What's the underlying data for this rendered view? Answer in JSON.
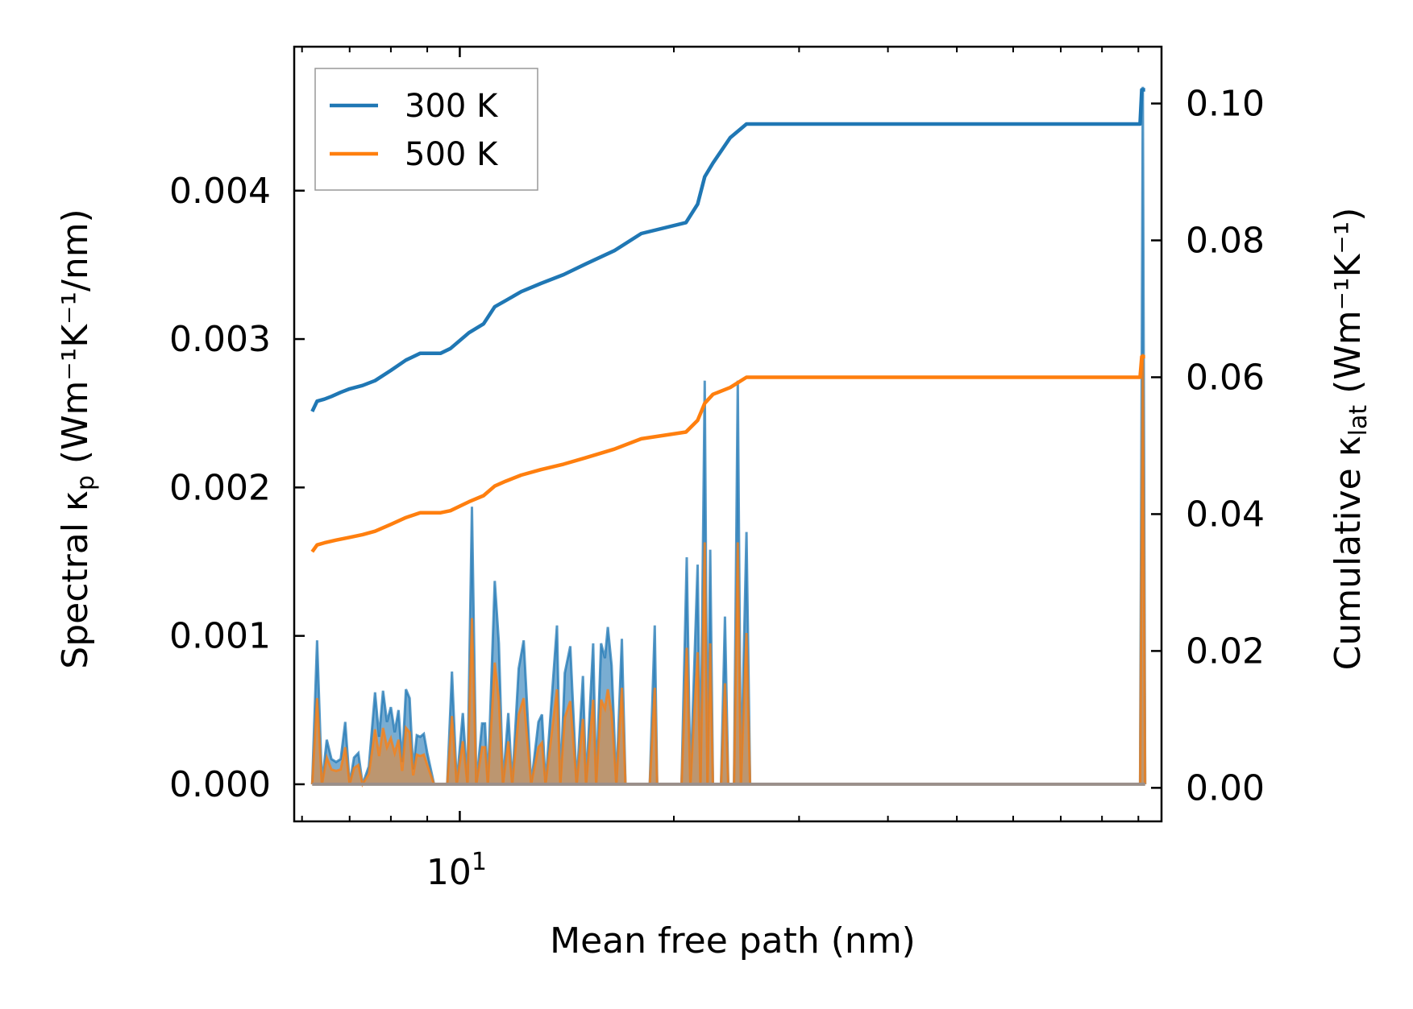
{
  "chart_data": {
    "type": "line",
    "xscale": "log",
    "xlabel": "Mean free path (nm)",
    "ylabel_left": {
      "prefix": "Spectral κ",
      "sub": "p",
      "units": " (Wm⁻¹K⁻¹/nm)"
    },
    "ylabel_right": {
      "prefix": "Cumulative κ",
      "sub": "lat",
      "units": " (Wm⁻¹K⁻¹)"
    },
    "xlim": [
      5.85,
      97
    ],
    "ylim_left": [
      -0.00025,
      0.00497
    ],
    "ylim_right": [
      -0.0049,
      0.1083
    ],
    "xticks_major": [
      {
        "value": 10,
        "base": "10",
        "exp": "1"
      }
    ],
    "xticks_minor": [
      6,
      7,
      8,
      9,
      20,
      30,
      40,
      50,
      60,
      70,
      80,
      90
    ],
    "yticks_left": [
      {
        "value": 0.0,
        "label": "0.000"
      },
      {
        "value": 0.001,
        "label": "0.001"
      },
      {
        "value": 0.002,
        "label": "0.002"
      },
      {
        "value": 0.003,
        "label": "0.003"
      },
      {
        "value": 0.004,
        "label": "0.004"
      }
    ],
    "yticks_right": [
      {
        "value": 0.0,
        "label": "0.00"
      },
      {
        "value": 0.02,
        "label": "0.02"
      },
      {
        "value": 0.04,
        "label": "0.04"
      },
      {
        "value": 0.06,
        "label": "0.06"
      },
      {
        "value": 0.08,
        "label": "0.08"
      },
      {
        "value": 0.1,
        "label": "0.10"
      }
    ],
    "legend": {
      "position": "top-left",
      "entries": [
        {
          "label": "300 K",
          "color": "#1f77b4"
        },
        {
          "label": "500 K",
          "color": "#ff7f0e"
        }
      ]
    },
    "series": [
      {
        "name": "300 K",
        "color": "#1f77b4",
        "spectral": [
          [
            6.2,
            0
          ],
          [
            6.3,
            0.00097
          ],
          [
            6.4,
            0
          ],
          [
            6.5,
            0.0003
          ],
          [
            6.6,
            0.00017
          ],
          [
            6.7,
            0.00015
          ],
          [
            6.8,
            0.00017
          ],
          [
            6.9,
            0.00042
          ],
          [
            7.0,
            0
          ],
          [
            7.1,
            0.00018
          ],
          [
            7.2,
            0.00021
          ],
          [
            7.3,
            0
          ],
          [
            7.45,
            0.00012
          ],
          [
            7.6,
            0.00062
          ],
          [
            7.7,
            0.00032
          ],
          [
            7.8,
            0.00063
          ],
          [
            7.9,
            0.00042
          ],
          [
            8.0,
            0.00052
          ],
          [
            8.1,
            0.00035
          ],
          [
            8.2,
            0.0005
          ],
          [
            8.3,
            0.00015
          ],
          [
            8.4,
            0.00064
          ],
          [
            8.5,
            0.00058
          ],
          [
            8.6,
            0.0001
          ],
          [
            8.7,
            0.00033
          ],
          [
            8.8,
            0.00032
          ],
          [
            8.9,
            0.00034
          ],
          [
            9.0,
            0.00021
          ],
          [
            9.2,
            0
          ],
          [
            9.6,
            0
          ],
          [
            9.75,
            0.00076
          ],
          [
            9.9,
            0
          ],
          [
            10.1,
            0.00048
          ],
          [
            10.25,
            0
          ],
          [
            10.4,
            0.00187
          ],
          [
            10.55,
            0
          ],
          [
            10.75,
            0.00041
          ],
          [
            10.85,
            0.00041
          ],
          [
            10.95,
            0
          ],
          [
            11.2,
            0.00137
          ],
          [
            11.35,
            0.00095
          ],
          [
            11.5,
            0
          ],
          [
            11.7,
            0.00048
          ],
          [
            11.85,
            0
          ],
          [
            12.1,
            0.00078
          ],
          [
            12.3,
            0.00097
          ],
          [
            12.6,
            0
          ],
          [
            12.9,
            0.00042
          ],
          [
            13.05,
            0.00047
          ],
          [
            13.2,
            0
          ],
          [
            13.7,
            0.00107
          ],
          [
            13.85,
            0
          ],
          [
            14.05,
            0.00075
          ],
          [
            14.3,
            0.00093
          ],
          [
            14.6,
            0
          ],
          [
            14.9,
            0.00073
          ],
          [
            15.05,
            0
          ],
          [
            15.4,
            0.00095
          ],
          [
            15.55,
            0
          ],
          [
            15.8,
            0.00095
          ],
          [
            16.0,
            0.00085
          ],
          [
            16.15,
            0.00106
          ],
          [
            16.35,
            0.0008
          ],
          [
            16.6,
            0
          ],
          [
            16.9,
            0.00098
          ],
          [
            17.1,
            0
          ],
          [
            18.5,
            0
          ],
          [
            18.8,
            0.00107
          ],
          [
            18.95,
            0
          ],
          [
            20.5,
            0
          ],
          [
            20.85,
            0.00153
          ],
          [
            21.1,
            0
          ],
          [
            21.6,
            0.00148
          ],
          [
            21.8,
            0
          ],
          [
            22.1,
            0.00272
          ],
          [
            22.3,
            0
          ],
          [
            22.5,
            0.00158
          ],
          [
            22.7,
            0
          ],
          [
            23.3,
            0
          ],
          [
            23.6,
            0.00113
          ],
          [
            23.85,
            0
          ],
          [
            24.3,
            0
          ],
          [
            24.6,
            0.00272
          ],
          [
            24.85,
            0
          ],
          [
            25.3,
            0.0017
          ],
          [
            25.6,
            0
          ],
          [
            90.5,
            0
          ],
          [
            91.3,
            0.0047
          ],
          [
            92.0,
            0
          ]
        ],
        "cumulative": [
          [
            6.2,
            0.055
          ],
          [
            6.3,
            0.0565
          ],
          [
            6.45,
            0.0568
          ],
          [
            6.6,
            0.0572
          ],
          [
            6.8,
            0.0578
          ],
          [
            7.0,
            0.0583
          ],
          [
            7.3,
            0.0588
          ],
          [
            7.6,
            0.0595
          ],
          [
            8.0,
            0.061
          ],
          [
            8.4,
            0.0625
          ],
          [
            8.8,
            0.0635
          ],
          [
            9.4,
            0.0635
          ],
          [
            9.7,
            0.0642
          ],
          [
            10.3,
            0.0665
          ],
          [
            10.8,
            0.0678
          ],
          [
            11.2,
            0.0703
          ],
          [
            11.6,
            0.0712
          ],
          [
            12.2,
            0.0725
          ],
          [
            13.0,
            0.0737
          ],
          [
            14.0,
            0.075
          ],
          [
            15.0,
            0.0765
          ],
          [
            16.5,
            0.0785
          ],
          [
            18.0,
            0.081
          ],
          [
            20.8,
            0.0826
          ],
          [
            21.6,
            0.0853
          ],
          [
            22.1,
            0.0893
          ],
          [
            22.7,
            0.0913
          ],
          [
            24.0,
            0.095
          ],
          [
            25.3,
            0.097
          ],
          [
            90.5,
            0.097
          ],
          [
            91.0,
            0.102
          ],
          [
            92.0,
            0.102
          ]
        ]
      },
      {
        "name": "500 K",
        "color": "#ff7f0e",
        "spectral": [
          [
            6.2,
            0
          ],
          [
            6.3,
            0.00058
          ],
          [
            6.4,
            0
          ],
          [
            6.5,
            0.00018
          ],
          [
            6.6,
            0.0001
          ],
          [
            6.7,
            9e-05
          ],
          [
            6.8,
            0.0001
          ],
          [
            6.9,
            0.00025
          ],
          [
            7.0,
            0
          ],
          [
            7.1,
            0.00011
          ],
          [
            7.2,
            0.00013
          ],
          [
            7.3,
            0
          ],
          [
            7.45,
            7e-05
          ],
          [
            7.6,
            0.00037
          ],
          [
            7.7,
            0.00019
          ],
          [
            7.8,
            0.00038
          ],
          [
            7.9,
            0.00025
          ],
          [
            8.0,
            0.00031
          ],
          [
            8.1,
            0.00021
          ],
          [
            8.2,
            0.0003
          ],
          [
            8.3,
            9e-05
          ],
          [
            8.4,
            0.00038
          ],
          [
            8.5,
            0.00035
          ],
          [
            8.6,
            6e-05
          ],
          [
            8.7,
            0.0002
          ],
          [
            8.8,
            0.00019
          ],
          [
            8.9,
            0.0002
          ],
          [
            9.0,
            0.00013
          ],
          [
            9.2,
            0
          ],
          [
            9.6,
            0
          ],
          [
            9.75,
            0.00046
          ],
          [
            9.9,
            0
          ],
          [
            10.1,
            0.00029
          ],
          [
            10.25,
            0
          ],
          [
            10.4,
            0.00112
          ],
          [
            10.55,
            0
          ],
          [
            10.75,
            0.00025
          ],
          [
            10.85,
            0.00025
          ],
          [
            10.95,
            0
          ],
          [
            11.2,
            0.00082
          ],
          [
            11.35,
            0.00057
          ],
          [
            11.5,
            0
          ],
          [
            11.7,
            0.00029
          ],
          [
            11.85,
            0
          ],
          [
            12.1,
            0.00047
          ],
          [
            12.3,
            0.00058
          ],
          [
            12.6,
            0
          ],
          [
            12.9,
            0.00025
          ],
          [
            13.05,
            0.00028
          ],
          [
            13.2,
            0
          ],
          [
            13.7,
            0.00064
          ],
          [
            13.85,
            0
          ],
          [
            14.05,
            0.00045
          ],
          [
            14.3,
            0.00056
          ],
          [
            14.6,
            0
          ],
          [
            14.9,
            0.00044
          ],
          [
            15.05,
            0
          ],
          [
            15.4,
            0.00057
          ],
          [
            15.55,
            0
          ],
          [
            15.8,
            0.00057
          ],
          [
            16.0,
            0.00051
          ],
          [
            16.15,
            0.00064
          ],
          [
            16.35,
            0.00048
          ],
          [
            16.6,
            0
          ],
          [
            16.9,
            0.00065
          ],
          [
            17.1,
            0
          ],
          [
            18.5,
            0
          ],
          [
            18.8,
            0.00065
          ],
          [
            18.95,
            0
          ],
          [
            20.5,
            0
          ],
          [
            20.85,
            0.00092
          ],
          [
            21.1,
            0
          ],
          [
            21.6,
            0.00089
          ],
          [
            21.8,
            0
          ],
          [
            22.1,
            0.00163
          ],
          [
            22.3,
            0
          ],
          [
            22.5,
            0.00095
          ],
          [
            22.7,
            0
          ],
          [
            23.3,
            0
          ],
          [
            23.6,
            0.00068
          ],
          [
            23.85,
            0
          ],
          [
            24.3,
            0
          ],
          [
            24.6,
            0.00163
          ],
          [
            24.85,
            0
          ],
          [
            25.3,
            0.00102
          ],
          [
            25.6,
            0
          ],
          [
            90.5,
            0
          ],
          [
            91.3,
            0.0029
          ],
          [
            92.0,
            0
          ]
        ],
        "cumulative": [
          [
            6.2,
            0.0345
          ],
          [
            6.3,
            0.0355
          ],
          [
            6.45,
            0.0358
          ],
          [
            6.7,
            0.0362
          ],
          [
            7.0,
            0.0366
          ],
          [
            7.3,
            0.037
          ],
          [
            7.6,
            0.0375
          ],
          [
            8.0,
            0.0385
          ],
          [
            8.4,
            0.0395
          ],
          [
            8.8,
            0.0402
          ],
          [
            9.4,
            0.0402
          ],
          [
            9.7,
            0.0405
          ],
          [
            10.3,
            0.0418
          ],
          [
            10.8,
            0.0427
          ],
          [
            11.2,
            0.0441
          ],
          [
            11.6,
            0.0448
          ],
          [
            12.2,
            0.0457
          ],
          [
            13.0,
            0.0465
          ],
          [
            14.0,
            0.0473
          ],
          [
            15.0,
            0.0482
          ],
          [
            16.5,
            0.0495
          ],
          [
            18.0,
            0.051
          ],
          [
            20.8,
            0.052
          ],
          [
            21.6,
            0.0537
          ],
          [
            22.1,
            0.0562
          ],
          [
            22.7,
            0.0575
          ],
          [
            24.0,
            0.0585
          ],
          [
            25.3,
            0.06
          ],
          [
            90.5,
            0.06
          ],
          [
            91.0,
            0.063
          ],
          [
            92.0,
            0.063
          ]
        ]
      }
    ]
  }
}
